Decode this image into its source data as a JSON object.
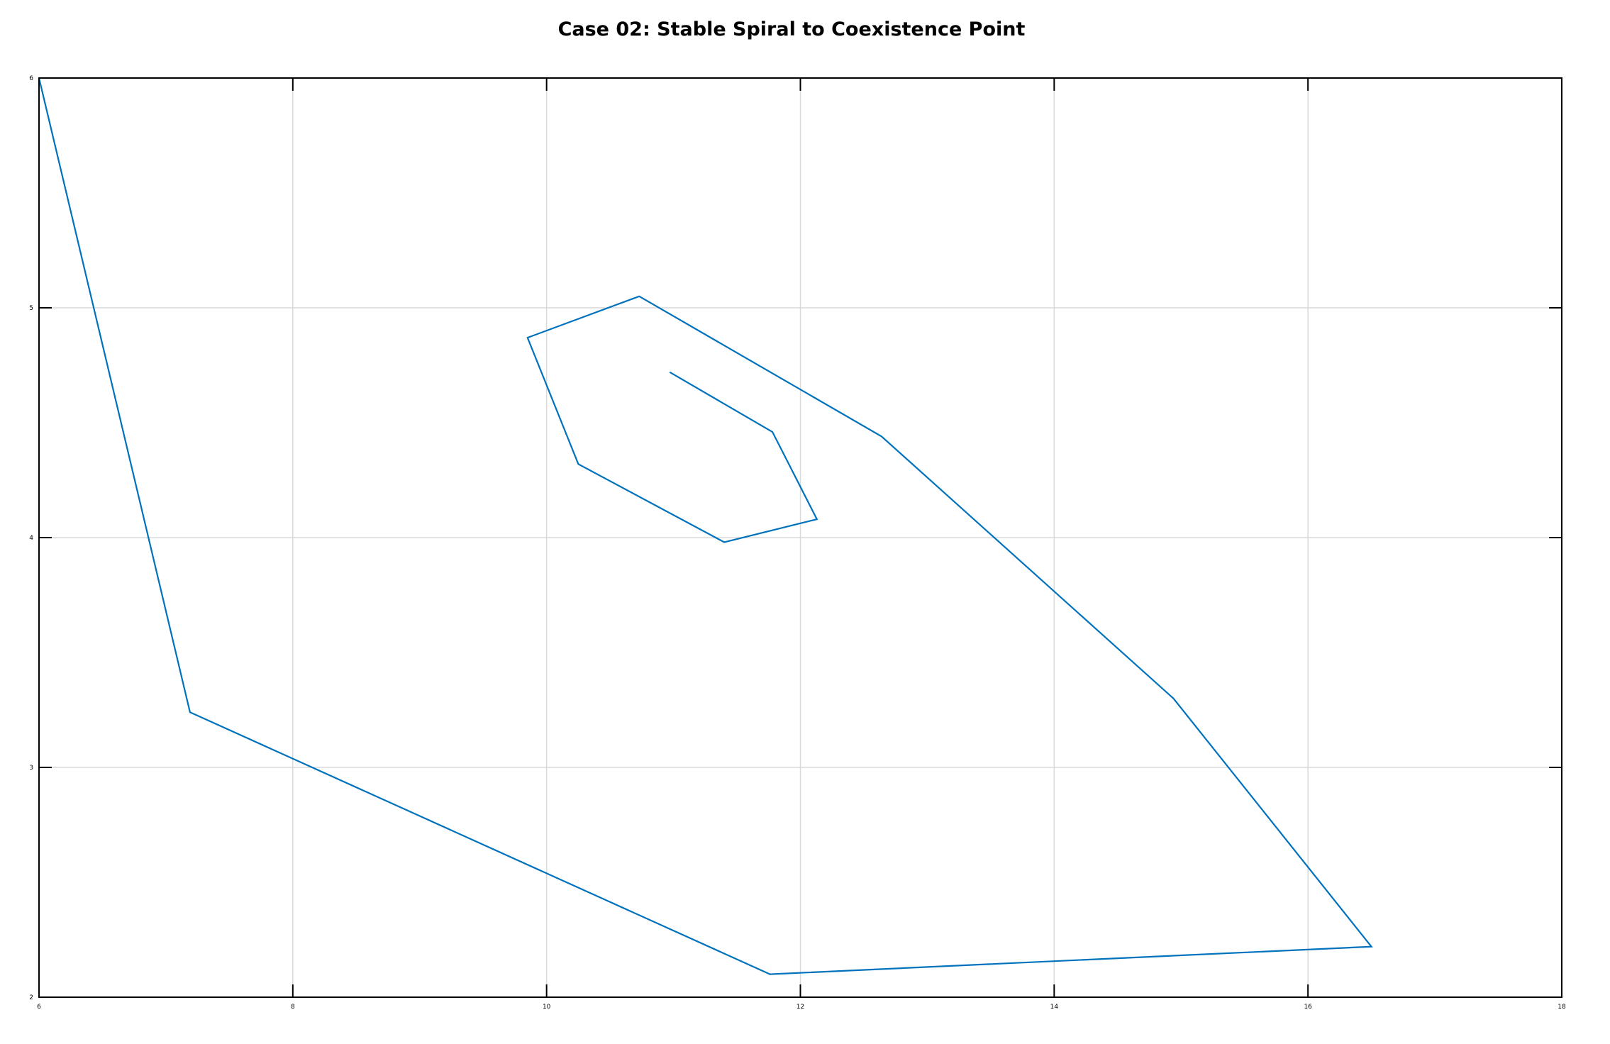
{
  "chart_data": {
    "type": "line",
    "title": "Case 02: Stable Spiral to Coexistence Point",
    "xlabel": "",
    "ylabel": "",
    "xlim": [
      6,
      18
    ],
    "ylim": [
      2,
      6
    ],
    "grid": true,
    "x_ticks": [
      6,
      8,
      10,
      12,
      14,
      16,
      18
    ],
    "y_ticks": [
      2,
      3,
      4,
      5,
      6
    ],
    "x_tick_labels": [
      "6",
      "8",
      "10",
      "12",
      "14",
      "16",
      "18"
    ],
    "y_tick_labels": [
      "2",
      "3",
      "4",
      "5",
      "6"
    ],
    "series": [
      {
        "color": "#0072BD",
        "x": [
          6.0,
          7.19,
          11.76,
          16.5,
          14.94,
          12.64,
          10.73,
          9.85,
          10.25,
          11.4,
          12.13,
          11.78,
          10.97
        ],
        "y": [
          6.0,
          3.24,
          2.1,
          2.22,
          3.3,
          4.44,
          5.05,
          4.87,
          4.32,
          3.98,
          4.08,
          4.46,
          4.72
        ]
      }
    ]
  }
}
